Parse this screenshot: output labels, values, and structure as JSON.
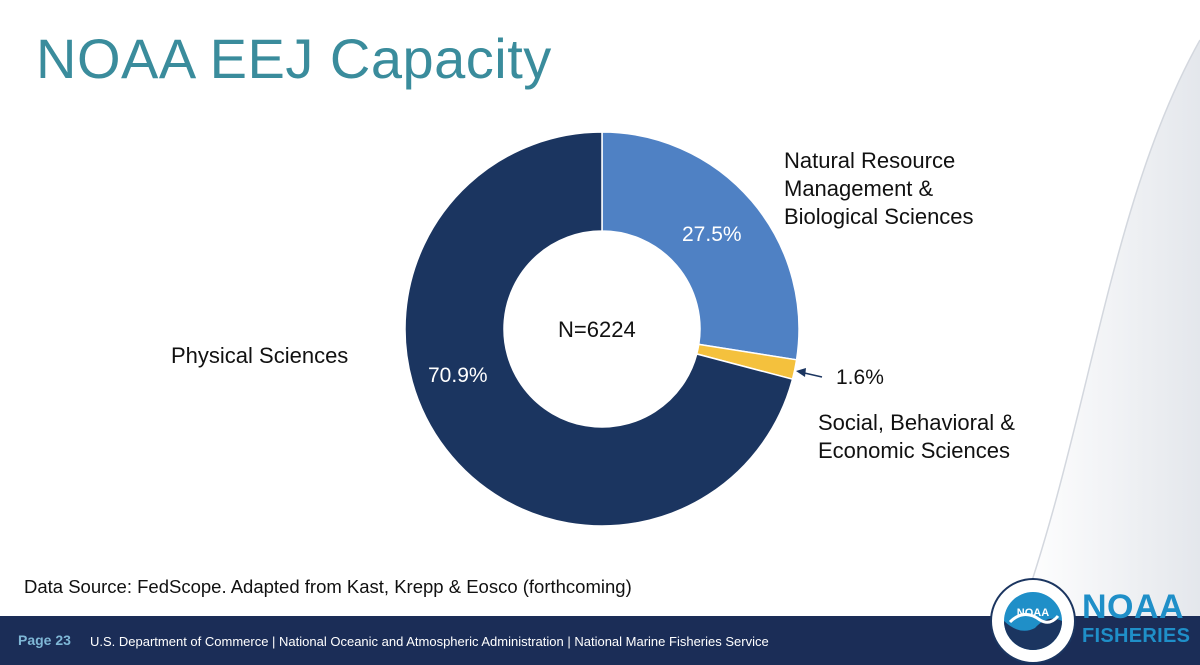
{
  "slide": {
    "title": "NOAA EEJ Capacity",
    "source": "Data Source: FedScope. Adapted from Kast, Krepp & Eosco (forthcoming)"
  },
  "chart_data": {
    "type": "pie",
    "donut": true,
    "center_label": "N=6224",
    "slices": [
      {
        "label_lines": [
          "Natural Resource",
          "Management &",
          "Biological Sciences"
        ],
        "value": 27.5,
        "pct_label": "27.5%",
        "color": "#4f81c4"
      },
      {
        "label_lines": [
          "Social, Behavioral &",
          "Economic Sciences"
        ],
        "value": 1.6,
        "pct_label": "1.6%",
        "color": "#f4c13d"
      },
      {
        "label_lines": [
          "Physical Sciences"
        ],
        "value": 70.9,
        "pct_label": "70.9%",
        "color": "#1b3560"
      }
    ]
  },
  "footer": {
    "page": "Page 23",
    "text": "U.S. Department of Commerce  |  National Oceanic and Atmospheric Administration  |  National Marine Fisheries Service"
  },
  "brand": {
    "line1": "NOAA",
    "line2": "FISHERIES",
    "logo_text": "NOAA",
    "logo_icon": "noaa-seal-icon"
  }
}
